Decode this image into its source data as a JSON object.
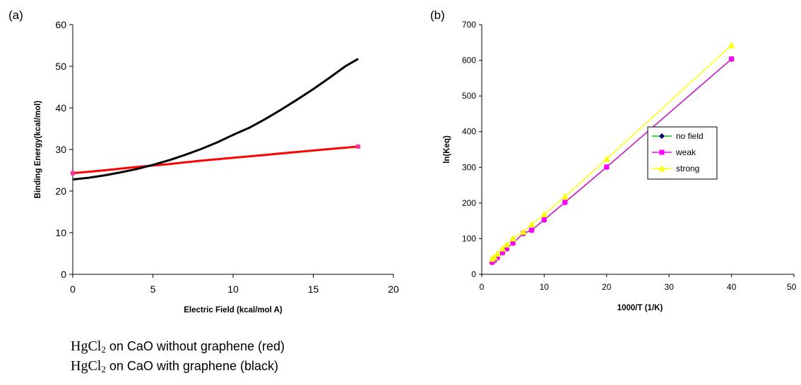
{
  "chart_data": [
    {
      "type": "line",
      "panel_label": "(a)",
      "xlabel": "Electric Field (kcal/mol A)",
      "ylabel": "Binding Energy(kcal/mol)",
      "xlim": [
        0,
        20
      ],
      "ylim": [
        0,
        60
      ],
      "xticks": [
        0,
        5,
        10,
        15,
        20
      ],
      "yticks": [
        0,
        10,
        20,
        30,
        40,
        50,
        60
      ],
      "grid": false,
      "series": [
        {
          "color": "#ff0000",
          "x": [
            0,
            2,
            4,
            6,
            8,
            10,
            12,
            14,
            16,
            17.8
          ],
          "y": [
            24.3,
            25.0,
            25.8,
            26.5,
            27.3,
            28.0,
            28.7,
            29.4,
            30.1,
            30.7
          ]
        },
        {
          "color": "#000000",
          "x": [
            0,
            1,
            2,
            3,
            4,
            5,
            6,
            7,
            8,
            9,
            10,
            11,
            12,
            13,
            14,
            15,
            16,
            17,
            17.8
          ],
          "y": [
            22.8,
            23.2,
            23.8,
            24.5,
            25.3,
            26.3,
            27.4,
            28.7,
            30.1,
            31.7,
            33.5,
            35.2,
            37.3,
            39.6,
            42.0,
            44.5,
            47.2,
            50.0,
            51.8
          ]
        }
      ],
      "caption": [
        {
          "formula": "HgCl",
          "sub": "2",
          "text": " on CaO without graphene (red)"
        },
        {
          "formula": "HgCl",
          "sub": "2",
          "text": " on CaO with graphene (black)"
        }
      ]
    },
    {
      "type": "line",
      "panel_label": "(b)",
      "xlabel": "1000/T (1/K)",
      "ylabel": "ln(Keq)",
      "xlim": [
        0,
        50
      ],
      "ylim": [
        0,
        700
      ],
      "xticks": [
        0,
        10,
        20,
        30,
        40,
        50
      ],
      "xtick_labels": [
        "0",
        "10",
        "20",
        "30",
        "40",
        "50"
      ],
      "yticks": [
        0,
        100,
        200,
        300,
        400,
        500,
        600,
        700
      ],
      "grid": false,
      "legend_position": "center-right",
      "series": [
        {
          "name": "no field",
          "color": "#00cc00",
          "marker": "diamond",
          "marker_color": "#000080",
          "x": [
            1.67,
            2,
            2.5,
            3.33,
            4,
            5,
            6.67,
            8,
            10,
            13.33,
            20,
            40
          ],
          "y": [
            33,
            38,
            46,
            60,
            71,
            87,
            114,
            123,
            152,
            201,
            300,
            603
          ]
        },
        {
          "name": "weak",
          "color": "#ff00ff",
          "marker": "square",
          "marker_color": "#ff00ff",
          "x": [
            1.67,
            2,
            2.5,
            3.33,
            4,
            5,
            6.67,
            8,
            10,
            13.33,
            20,
            40
          ],
          "y": [
            34,
            39,
            47,
            61,
            72,
            88,
            115,
            124,
            153,
            202,
            301,
            604
          ]
        },
        {
          "name": "strong",
          "color": "#ffff00",
          "marker": "triangle",
          "marker_color": "#ffff00",
          "x": [
            1.67,
            2,
            2.5,
            3.33,
            4,
            5,
            6.67,
            8,
            10,
            13.33,
            20,
            40
          ],
          "y": [
            43,
            48,
            57,
            72,
            83,
            100,
            119,
            140,
            168,
            218,
            323,
            642
          ]
        }
      ]
    }
  ]
}
